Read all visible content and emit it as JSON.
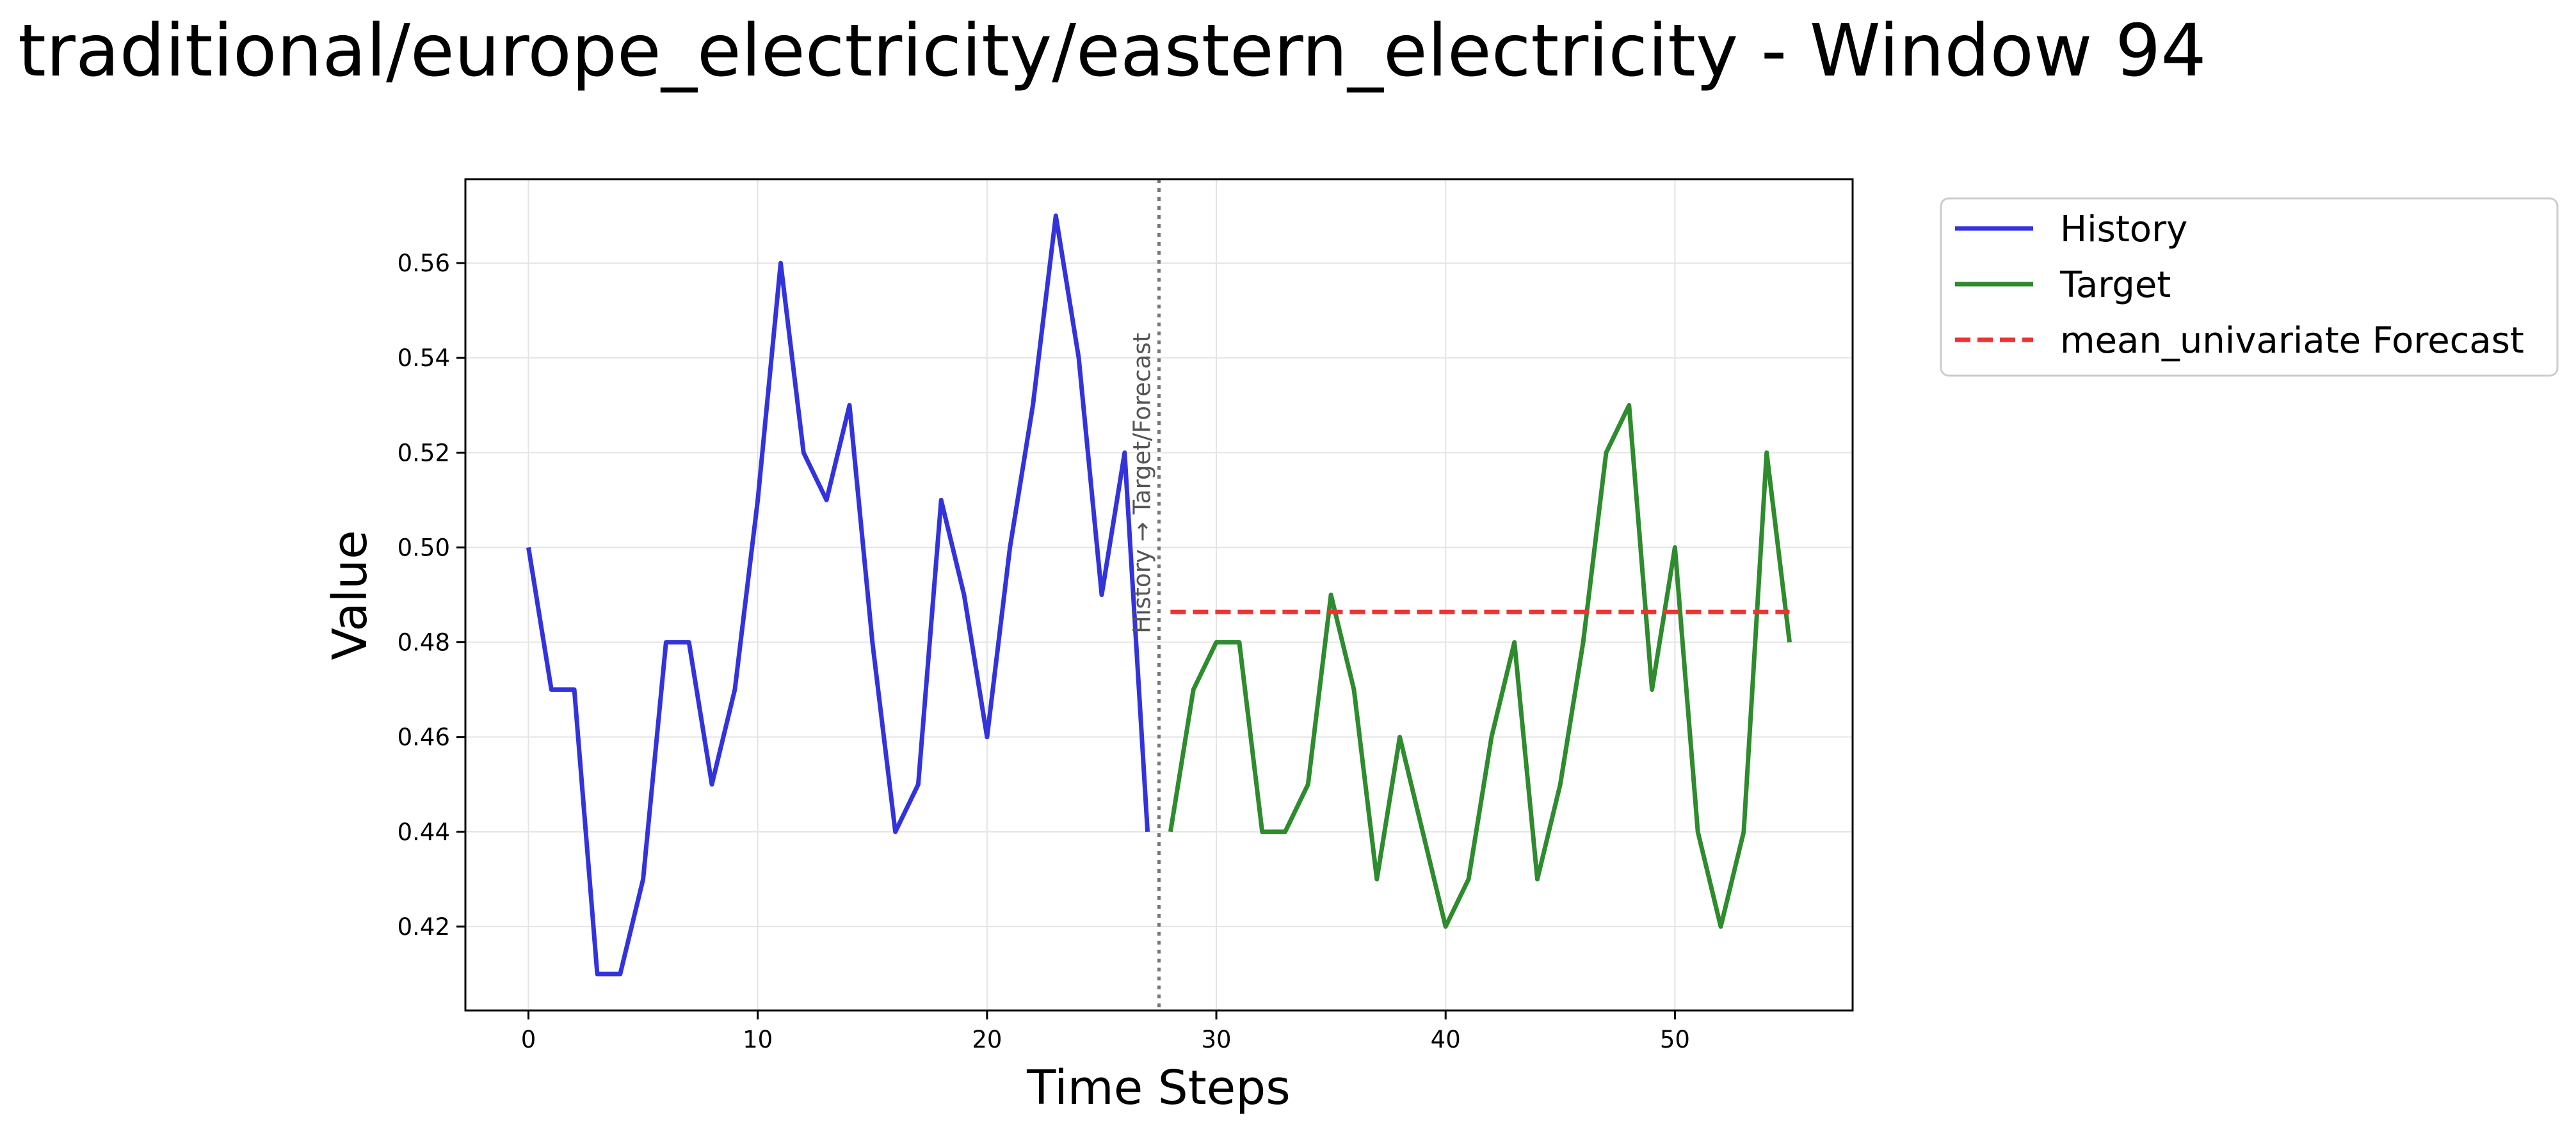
{
  "chart_data": {
    "type": "line",
    "title": "traditional/europe_electricity/eastern_electricity - Window 94",
    "xlabel": "Time Steps",
    "ylabel": "Value",
    "xlim": [
      -2.75,
      57.75
    ],
    "ylim": [
      0.4023,
      0.5777
    ],
    "x_ticks": [
      0,
      10,
      20,
      30,
      40,
      50
    ],
    "y_ticks": [
      0.42,
      0.44,
      0.46,
      0.48,
      0.5,
      0.52,
      0.54,
      0.56
    ],
    "grid": true,
    "legend_position": "outside-top-right",
    "series": [
      {
        "name": "History",
        "color": "#3333dd",
        "style": "solid",
        "x": [
          0,
          1,
          2,
          3,
          4,
          5,
          6,
          7,
          8,
          9,
          10,
          11,
          12,
          13,
          14,
          15,
          16,
          17,
          18,
          19,
          20,
          21,
          22,
          23,
          24,
          25,
          26,
          27
        ],
        "values": [
          0.5,
          0.47,
          0.47,
          0.41,
          0.41,
          0.43,
          0.48,
          0.48,
          0.45,
          0.47,
          0.51,
          0.56,
          0.52,
          0.51,
          0.53,
          0.48,
          0.44,
          0.45,
          0.51,
          0.49,
          0.46,
          0.5,
          0.53,
          0.57,
          0.54,
          0.49,
          0.52,
          0.44
        ]
      },
      {
        "name": "Target",
        "color": "#2e8b2e",
        "style": "solid",
        "x": [
          28,
          29,
          30,
          31,
          32,
          33,
          34,
          35,
          36,
          37,
          38,
          39,
          40,
          41,
          42,
          43,
          44,
          45,
          46,
          47,
          48,
          49,
          50,
          51,
          52,
          53,
          54,
          55
        ],
        "values": [
          0.44,
          0.47,
          0.48,
          0.48,
          0.44,
          0.44,
          0.45,
          0.49,
          0.47,
          0.43,
          0.46,
          0.44,
          0.42,
          0.43,
          0.46,
          0.48,
          0.43,
          0.45,
          0.48,
          0.52,
          0.53,
          0.47,
          0.5,
          0.44,
          0.42,
          0.44,
          0.52,
          0.48
        ]
      },
      {
        "name": "mean_univariate Forecast",
        "color": "#ee3333",
        "style": "dashed",
        "x": [
          28,
          55
        ],
        "values": [
          0.4864,
          0.4864
        ]
      }
    ],
    "divider": {
      "x": 27.5,
      "label": "History → Target/Forecast",
      "color": "#777777"
    }
  }
}
